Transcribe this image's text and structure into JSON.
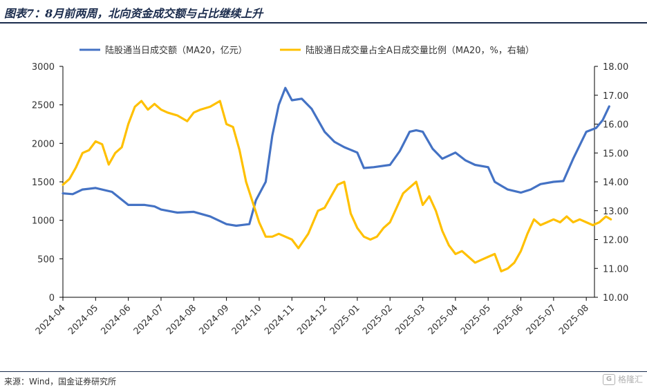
{
  "header": {
    "title": "图表7：8月前两周，北向资金成交额与占比继续上升"
  },
  "footer": {
    "source": "来源：Wind，国金证券研究所",
    "watermark": "格隆汇"
  },
  "colors": {
    "series1": "#4472C4",
    "series2": "#FFC000",
    "axis": "#000000"
  },
  "chart_data": {
    "type": "line",
    "x_categories": [
      "2024-04",
      "2024-05",
      "2024-06",
      "2024-07",
      "2024-08",
      "2024-09",
      "2024-10",
      "2024-11",
      "2024-12",
      "2025-01",
      "2025-02",
      "2025-03",
      "2025-04",
      "2025-05",
      "2025-06",
      "2025-07",
      "2025-08"
    ],
    "y_left": {
      "ticks": [
        0,
        500,
        1000,
        1500,
        2000,
        2500,
        3000
      ],
      "range": [
        0,
        3000
      ]
    },
    "y_right": {
      "ticks": [
        "10.00",
        "11.00",
        "12.00",
        "13.00",
        "14.00",
        "15.00",
        "16.00",
        "17.00",
        "18.00"
      ],
      "range": [
        10,
        18
      ]
    },
    "series": [
      {
        "name": "陆股通当日成交额（MA20，亿元）",
        "axis": "left",
        "color": "#4472C4",
        "t": [
          0,
          0.3,
          0.6,
          1.0,
          1.5,
          2.0,
          2.5,
          2.8,
          3.0,
          3.5,
          4.0,
          4.5,
          5.0,
          5.3,
          5.5,
          5.7,
          5.9,
          6.2,
          6.4,
          6.6,
          6.8,
          7.0,
          7.3,
          7.6,
          8.0,
          8.3,
          8.6,
          9.0,
          9.2,
          9.5,
          10.0,
          10.3,
          10.6,
          10.8,
          11.0,
          11.3,
          11.6,
          12.0,
          12.3,
          12.6,
          13.0,
          13.2,
          13.4,
          13.6,
          14.0,
          14.3,
          14.6,
          15.0,
          15.3,
          15.6,
          16.0,
          16.3,
          16.5,
          16.7
        ],
        "values": [
          1350,
          1340,
          1400,
          1420,
          1370,
          1200,
          1200,
          1180,
          1140,
          1100,
          1110,
          1050,
          950,
          930,
          940,
          950,
          1260,
          1500,
          2100,
          2500,
          2720,
          2560,
          2580,
          2450,
          2150,
          2020,
          1950,
          1880,
          1680,
          1690,
          1720,
          1900,
          2150,
          2170,
          2150,
          1930,
          1800,
          1880,
          1780,
          1720,
          1690,
          1500,
          1450,
          1400,
          1360,
          1400,
          1470,
          1500,
          1510,
          1800,
          2150,
          2200,
          2300,
          2480
        ]
      },
      {
        "name": "陆股通日成交量占全A日成交量比例（MA20，%，右轴）",
        "axis": "right",
        "color": "#FFC000",
        "t": [
          0,
          0.2,
          0.4,
          0.6,
          0.8,
          1.0,
          1.2,
          1.4,
          1.6,
          1.8,
          2.0,
          2.2,
          2.4,
          2.6,
          2.8,
          3.0,
          3.2,
          3.5,
          3.8,
          4.0,
          4.2,
          4.5,
          4.8,
          5.0,
          5.2,
          5.4,
          5.6,
          5.8,
          6.0,
          6.2,
          6.4,
          6.6,
          6.8,
          7.0,
          7.2,
          7.5,
          7.8,
          8.0,
          8.2,
          8.4,
          8.6,
          8.8,
          9.0,
          9.2,
          9.4,
          9.6,
          9.8,
          10.0,
          10.2,
          10.4,
          10.6,
          10.8,
          11.0,
          11.2,
          11.4,
          11.6,
          11.8,
          12.0,
          12.2,
          12.4,
          12.6,
          12.8,
          13.0,
          13.2,
          13.4,
          13.6,
          13.8,
          14.0,
          14.2,
          14.4,
          14.6,
          14.8,
          15.0,
          15.2,
          15.4,
          15.6,
          15.8,
          16.0,
          16.2,
          16.4,
          16.6,
          16.75
        ],
        "values": [
          13.9,
          14.1,
          14.5,
          15.0,
          15.1,
          15.4,
          15.3,
          14.6,
          15.0,
          15.2,
          16.0,
          16.6,
          16.8,
          16.5,
          16.7,
          16.5,
          16.4,
          16.3,
          16.1,
          16.4,
          16.5,
          16.6,
          16.8,
          16.0,
          15.9,
          15.1,
          14.0,
          13.3,
          12.6,
          12.1,
          12.1,
          12.2,
          12.1,
          12.0,
          11.7,
          12.2,
          13.0,
          13.1,
          13.5,
          13.9,
          14.0,
          12.9,
          12.4,
          12.1,
          12.0,
          12.1,
          12.4,
          12.6,
          13.1,
          13.6,
          13.8,
          14.0,
          13.2,
          13.5,
          13.0,
          12.3,
          11.8,
          11.5,
          11.6,
          11.4,
          11.2,
          11.3,
          11.4,
          11.5,
          10.9,
          11.0,
          11.2,
          11.6,
          12.2,
          12.7,
          12.5,
          12.6,
          12.7,
          12.6,
          12.8,
          12.6,
          12.7,
          12.6,
          12.5,
          12.6,
          12.8,
          12.7
        ]
      }
    ]
  }
}
